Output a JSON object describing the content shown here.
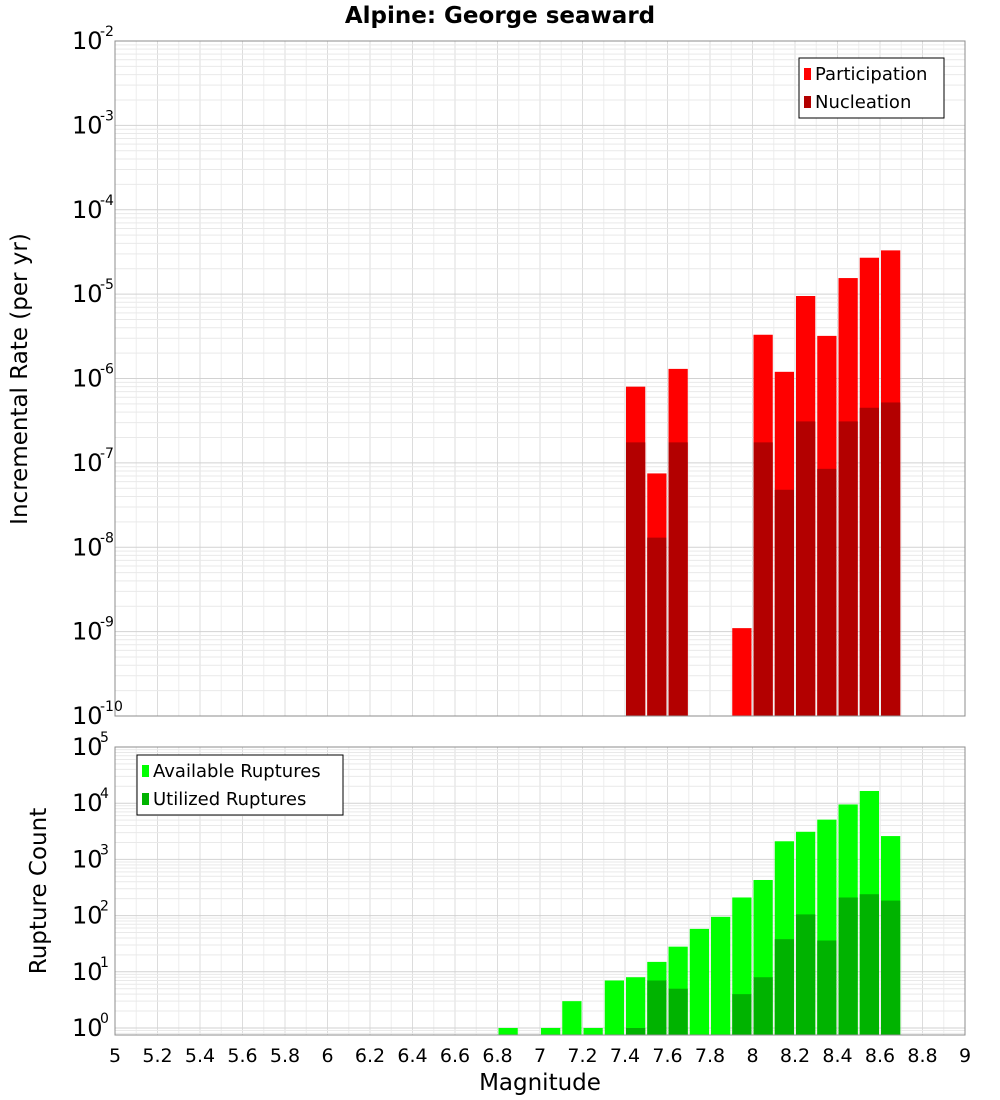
{
  "chart_data": [
    {
      "type": "bar",
      "title": "Alpine: George seaward",
      "ylabel": "Incremental Rate (per yr)",
      "xlabel": "",
      "yscale": "log",
      "ylim": [
        1e-10,
        0.01
      ],
      "xlim": [
        5,
        9
      ],
      "bin_width": 0.1,
      "legend": {
        "placement": "top-right"
      },
      "grid": true,
      "y_ticks": [
        {
          "base": "10",
          "exp": "-10"
        },
        {
          "base": "10",
          "exp": "-9"
        },
        {
          "base": "10",
          "exp": "-8"
        },
        {
          "base": "10",
          "exp": "-7"
        },
        {
          "base": "10",
          "exp": "-6"
        },
        {
          "base": "10",
          "exp": "-5"
        },
        {
          "base": "10",
          "exp": "-4"
        },
        {
          "base": "10",
          "exp": "-3"
        },
        {
          "base": "10",
          "exp": "-2"
        }
      ],
      "x": [
        7.45,
        7.55,
        7.65,
        7.95,
        8.05,
        8.15,
        8.25,
        8.35,
        8.45,
        8.55,
        8.65
      ],
      "series": [
        {
          "name": "Participation",
          "color": "#ff0000",
          "values": [
            8e-07,
            7.5e-08,
            1.3e-06,
            1.1e-09,
            3.3e-06,
            1.2e-06,
            9.5e-06,
            3.2e-06,
            1.55e-05,
            2.7e-05,
            3.3e-05
          ]
        },
        {
          "name": "Nucleation",
          "color": "#b30000",
          "values": [
            1.75e-07,
            1.3e-08,
            1.75e-07,
            null,
            1.75e-07,
            4.8e-08,
            3.1e-07,
            8.5e-08,
            3.1e-07,
            4.5e-07,
            5.2e-07
          ]
        }
      ]
    },
    {
      "type": "bar",
      "title": "",
      "ylabel": "Rupture Count",
      "xlabel": "Magnitude",
      "yscale": "log",
      "ylim": [
        0.75,
        100000
      ],
      "xlim": [
        5,
        9
      ],
      "bin_width": 0.1,
      "legend": {
        "placement": "top-left"
      },
      "grid": true,
      "x_ticks": [
        "5",
        "5.2",
        "5.4",
        "5.6",
        "5.8",
        "6",
        "6.2",
        "6.4",
        "6.6",
        "6.8",
        "7",
        "7.2",
        "7.4",
        "7.6",
        "7.8",
        "8",
        "8.2",
        "8.4",
        "8.6",
        "8.8",
        "9"
      ],
      "y_ticks": [
        {
          "base": "10",
          "exp": "0"
        },
        {
          "base": "10",
          "exp": "1"
        },
        {
          "base": "10",
          "exp": "2"
        },
        {
          "base": "10",
          "exp": "3"
        },
        {
          "base": "10",
          "exp": "4"
        },
        {
          "base": "10",
          "exp": "5"
        }
      ],
      "x": [
        6.85,
        7.05,
        7.15,
        7.25,
        7.35,
        7.45,
        7.55,
        7.65,
        7.75,
        7.85,
        7.95,
        8.05,
        8.15,
        8.25,
        8.35,
        8.45,
        8.55,
        8.65
      ],
      "series": [
        {
          "name": "Available Ruptures",
          "color": "#00ff00",
          "values": [
            1,
            1,
            3,
            1,
            7,
            8,
            15,
            28,
            58,
            95,
            210,
            430,
            2100,
            3100,
            5100,
            9500,
            16500,
            2600
          ]
        },
        {
          "name": "Utilized Ruptures",
          "color": "#00b300",
          "values": [
            null,
            null,
            null,
            null,
            null,
            1,
            7,
            5,
            null,
            null,
            4,
            8,
            38,
            105,
            36,
            210,
            240,
            185
          ]
        }
      ]
    }
  ]
}
